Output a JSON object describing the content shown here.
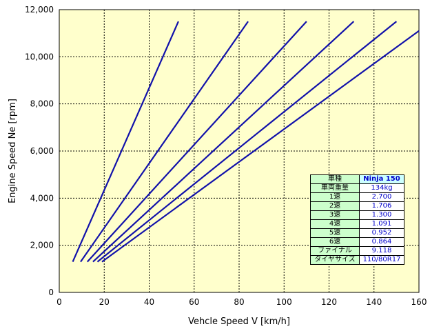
{
  "chart_data": {
    "type": "line",
    "xlabel": "Vehcle Speed V [km/h]",
    "ylabel": "Engine Speed Ne [rpm]",
    "xlim": [
      0,
      160
    ],
    "ylim": [
      0,
      12000
    ],
    "x_ticks": [
      0,
      20,
      40,
      60,
      80,
      100,
      120,
      140,
      160
    ],
    "y_ticks": [
      0,
      2000,
      4000,
      6000,
      8000,
      10000,
      12000
    ],
    "y_tick_labels": [
      "0",
      "2,000",
      "4,000",
      "6,000",
      "8,000",
      "10,000",
      "12,000"
    ],
    "grid": true,
    "series": [
      {
        "x": [
          6,
          53
        ],
        "y": [
          1300,
          11500
        ]
      },
      {
        "x": [
          9.5,
          84
        ],
        "y": [
          1300,
          11500
        ]
      },
      {
        "x": [
          12.5,
          110
        ],
        "y": [
          1300,
          11500
        ]
      },
      {
        "x": [
          15,
          131
        ],
        "y": [
          1300,
          11500
        ]
      },
      {
        "x": [
          17,
          150
        ],
        "y": [
          1300,
          11500
        ]
      },
      {
        "x": [
          19,
          160
        ],
        "y": [
          1300,
          11100
        ]
      }
    ],
    "colors": {
      "line": "#1111aa",
      "plot_bg": "#ffffcc",
      "grid": "#000000"
    }
  },
  "spec_table": {
    "rows": [
      {
        "label": "車種",
        "value": "Ninja 150"
      },
      {
        "label": "車両重量",
        "value": "134kg"
      },
      {
        "label": "1速",
        "value": "2.700"
      },
      {
        "label": "2速",
        "value": "1.706"
      },
      {
        "label": "3速",
        "value": "1.300"
      },
      {
        "label": "4速",
        "value": "1.091"
      },
      {
        "label": "5速",
        "value": "0.952"
      },
      {
        "label": "6速",
        "value": "0.864"
      },
      {
        "label": "ファイナル",
        "value": "9.118"
      },
      {
        "label": "タイヤサイズ",
        "value": "110/80R17"
      }
    ]
  }
}
